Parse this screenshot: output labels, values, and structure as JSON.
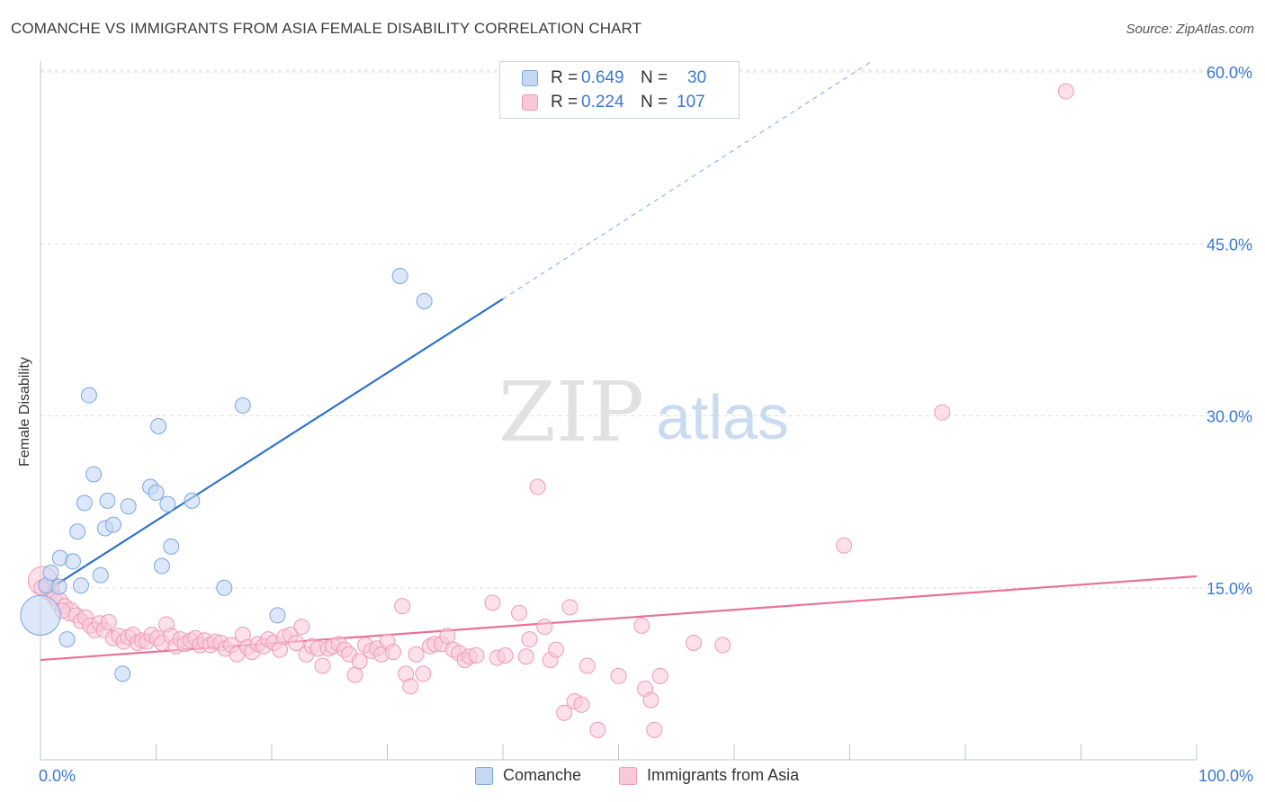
{
  "header": {
    "title": "COMANCHE VS IMMIGRANTS FROM ASIA FEMALE DISABILITY CORRELATION CHART",
    "source": "Source: ZipAtlas.com"
  },
  "watermark": {
    "zip": "ZIP",
    "atlas": "atlas"
  },
  "colors": {
    "comanche_fill": "#c5d9f5",
    "comanche_stroke": "#7aa6e0",
    "comanche_line": "#2f72cc",
    "asia_fill": "#f9c9d8",
    "asia_stroke": "#ef9ab5",
    "asia_line": "#e8719a",
    "grid": "#d9dde2",
    "tick_label": "#3a78d4"
  },
  "legend": {
    "rows": [
      {
        "r_label": "R =",
        "r_value": "0.649",
        "n_label": "N =",
        "n_value": "30"
      },
      {
        "r_label": "R =",
        "r_value": "0.224",
        "n_label": "N =",
        "n_value": "107"
      }
    ]
  },
  "bottom_legend": [
    {
      "label": "Comanche"
    },
    {
      "label": "Immigrants from Asia"
    }
  ],
  "chart_data": {
    "type": "scatter",
    "title": "COMANCHE VS IMMIGRANTS FROM ASIA FEMALE DISABILITY CORRELATION CHART",
    "xlabel": "",
    "ylabel": "Female Disability",
    "xlim": [
      0,
      100
    ],
    "ylim": [
      0,
      63
    ],
    "x_tick_labels": [
      {
        "value": 0,
        "label": "0.0%"
      },
      {
        "value": 100,
        "label": "100.0%"
      }
    ],
    "x_minor_ticks": [
      10,
      20,
      30,
      40,
      50,
      60,
      70,
      80,
      90,
      100
    ],
    "y_ticks": [
      {
        "value": 15,
        "label": "15.0%"
      },
      {
        "value": 30,
        "label": "30.0%"
      },
      {
        "value": 45,
        "label": "45.0%"
      },
      {
        "value": 60,
        "label": "60.0%"
      }
    ],
    "series": [
      {
        "name": "Comanche",
        "r": 0.649,
        "n": 30,
        "trend": {
          "x0": 0,
          "y0": 14.4,
          "x1": 40,
          "y1": 40.2,
          "dash_x1": 72,
          "dash_y1": 61.0
        },
        "points": [
          [
            0.0,
            12.6,
            2.6
          ],
          [
            0.5,
            15.2,
            1
          ],
          [
            0.9,
            16.3,
            1
          ],
          [
            1.6,
            15.1,
            1
          ],
          [
            1.7,
            17.6,
            1
          ],
          [
            2.3,
            10.5,
            1
          ],
          [
            2.8,
            17.3,
            1
          ],
          [
            3.2,
            19.9,
            1
          ],
          [
            3.5,
            15.2,
            1
          ],
          [
            3.8,
            22.4,
            1
          ],
          [
            4.2,
            31.8,
            1
          ],
          [
            4.6,
            24.9,
            1
          ],
          [
            5.2,
            16.1,
            1
          ],
          [
            5.6,
            20.2,
            1
          ],
          [
            5.8,
            22.6,
            1
          ],
          [
            6.3,
            20.5,
            1
          ],
          [
            7.1,
            7.5,
            1
          ],
          [
            7.6,
            22.1,
            1
          ],
          [
            9.5,
            23.8,
            1
          ],
          [
            10.0,
            23.3,
            1
          ],
          [
            10.2,
            29.1,
            1
          ],
          [
            10.5,
            16.9,
            1
          ],
          [
            11.0,
            22.3,
            1
          ],
          [
            11.3,
            18.6,
            1
          ],
          [
            13.1,
            22.6,
            1
          ],
          [
            15.9,
            15.0,
            1
          ],
          [
            17.5,
            30.9,
            1
          ],
          [
            20.5,
            12.6,
            1
          ],
          [
            31.1,
            42.2,
            1
          ],
          [
            33.2,
            40.0,
            1
          ]
        ]
      },
      {
        "name": "Immigrants from Asia",
        "r": 0.224,
        "n": 107,
        "trend": {
          "x0": 0,
          "y0": 8.7,
          "x1": 100,
          "y1": 16.0
        },
        "points": [
          [
            0.2,
            15.6,
            1.9
          ],
          [
            0.8,
            14.8,
            1.3
          ],
          [
            1.2,
            14.2,
            1
          ],
          [
            1.6,
            13.8,
            1.2
          ],
          [
            2.1,
            13.4,
            1
          ],
          [
            2.6,
            12.9,
            1.2
          ],
          [
            3.1,
            12.6,
            1
          ],
          [
            3.5,
            12.1,
            1
          ],
          [
            3.9,
            12.4,
            1
          ],
          [
            4.3,
            11.7,
            1
          ],
          [
            4.7,
            11.3,
            1
          ],
          [
            5.1,
            11.9,
            1
          ],
          [
            5.5,
            11.3,
            1
          ],
          [
            5.9,
            12.0,
            1
          ],
          [
            6.3,
            10.6,
            1
          ],
          [
            6.8,
            10.8,
            1
          ],
          [
            7.2,
            10.3,
            1
          ],
          [
            7.6,
            10.7,
            1
          ],
          [
            8.0,
            10.9,
            1
          ],
          [
            8.4,
            10.2,
            1
          ],
          [
            8.8,
            10.4,
            1
          ],
          [
            9.2,
            10.3,
            1
          ],
          [
            9.6,
            10.9,
            1
          ],
          [
            10.1,
            10.6,
            1
          ],
          [
            10.5,
            10.2,
            1
          ],
          [
            10.9,
            11.8,
            1
          ],
          [
            11.3,
            10.8,
            1
          ],
          [
            11.7,
            9.9,
            1
          ],
          [
            12.1,
            10.5,
            1
          ],
          [
            12.5,
            10.1,
            1
          ],
          [
            13.0,
            10.4,
            1
          ],
          [
            13.4,
            10.6,
            1
          ],
          [
            13.8,
            10.0,
            1
          ],
          [
            14.2,
            10.4,
            1
          ],
          [
            14.7,
            10.0,
            1
          ],
          [
            15.1,
            10.3,
            1
          ],
          [
            15.6,
            10.2,
            1
          ],
          [
            16.0,
            9.7,
            1
          ],
          [
            16.5,
            10.0,
            1
          ],
          [
            17.0,
            9.2,
            1
          ],
          [
            17.5,
            10.9,
            1
          ],
          [
            17.9,
            9.8,
            1
          ],
          [
            18.3,
            9.4,
            1
          ],
          [
            18.8,
            10.1,
            1
          ],
          [
            19.3,
            9.9,
            1
          ],
          [
            19.7,
            10.5,
            1
          ],
          [
            20.2,
            10.2,
            1
          ],
          [
            20.7,
            9.6,
            1
          ],
          [
            21.1,
            10.7,
            1
          ],
          [
            21.6,
            10.9,
            1
          ],
          [
            22.1,
            10.2,
            1
          ],
          [
            22.6,
            11.6,
            1
          ],
          [
            23.0,
            9.2,
            1
          ],
          [
            23.5,
            9.9,
            1
          ],
          [
            24.0,
            9.7,
            1
          ],
          [
            24.4,
            8.2,
            1
          ],
          [
            24.9,
            9.7,
            1
          ],
          [
            25.3,
            9.9,
            1
          ],
          [
            25.8,
            10.1,
            1
          ],
          [
            26.3,
            9.6,
            1
          ],
          [
            26.7,
            9.2,
            1
          ],
          [
            27.2,
            7.4,
            1
          ],
          [
            27.6,
            8.6,
            1
          ],
          [
            28.1,
            10.0,
            1
          ],
          [
            28.6,
            9.5,
            1
          ],
          [
            29.1,
            9.7,
            1
          ],
          [
            29.5,
            9.2,
            1
          ],
          [
            30.0,
            10.3,
            1
          ],
          [
            30.5,
            9.4,
            1
          ],
          [
            31.3,
            13.4,
            1
          ],
          [
            31.6,
            7.5,
            1
          ],
          [
            32.0,
            6.4,
            1
          ],
          [
            32.5,
            9.2,
            1
          ],
          [
            33.1,
            7.5,
            1
          ],
          [
            33.7,
            9.9,
            1
          ],
          [
            34.1,
            10.1,
            1
          ],
          [
            34.7,
            10.1,
            1
          ],
          [
            35.2,
            10.8,
            1
          ],
          [
            35.7,
            9.6,
            1
          ],
          [
            36.2,
            9.3,
            1
          ],
          [
            36.7,
            8.7,
            1
          ],
          [
            37.1,
            9.0,
            1
          ],
          [
            37.7,
            9.1,
            1
          ],
          [
            39.1,
            13.7,
            1
          ],
          [
            39.5,
            8.9,
            1
          ],
          [
            40.2,
            9.1,
            1
          ],
          [
            41.4,
            12.8,
            1
          ],
          [
            42.0,
            9.0,
            1
          ],
          [
            42.3,
            10.5,
            1
          ],
          [
            43.0,
            23.8,
            1
          ],
          [
            43.6,
            11.6,
            1
          ],
          [
            44.1,
            8.7,
            1
          ],
          [
            44.6,
            9.6,
            1
          ],
          [
            45.3,
            4.1,
            1
          ],
          [
            45.8,
            13.3,
            1
          ],
          [
            46.2,
            5.1,
            1
          ],
          [
            46.8,
            4.8,
            1
          ],
          [
            47.3,
            8.2,
            1
          ],
          [
            48.2,
            2.6,
            1
          ],
          [
            50.0,
            7.3,
            1
          ],
          [
            52.0,
            11.7,
            1
          ],
          [
            52.3,
            6.2,
            1
          ],
          [
            52.8,
            5.2,
            1
          ],
          [
            53.1,
            2.6,
            1
          ],
          [
            53.6,
            7.3,
            1
          ],
          [
            56.5,
            10.2,
            1
          ],
          [
            59.0,
            10.0,
            1
          ],
          [
            69.5,
            18.7,
            1
          ],
          [
            78.0,
            30.3,
            1
          ],
          [
            88.7,
            58.3,
            1
          ],
          [
            0.1,
            15.0,
            1
          ],
          [
            1.9,
            13.0,
            1
          ]
        ]
      }
    ]
  }
}
